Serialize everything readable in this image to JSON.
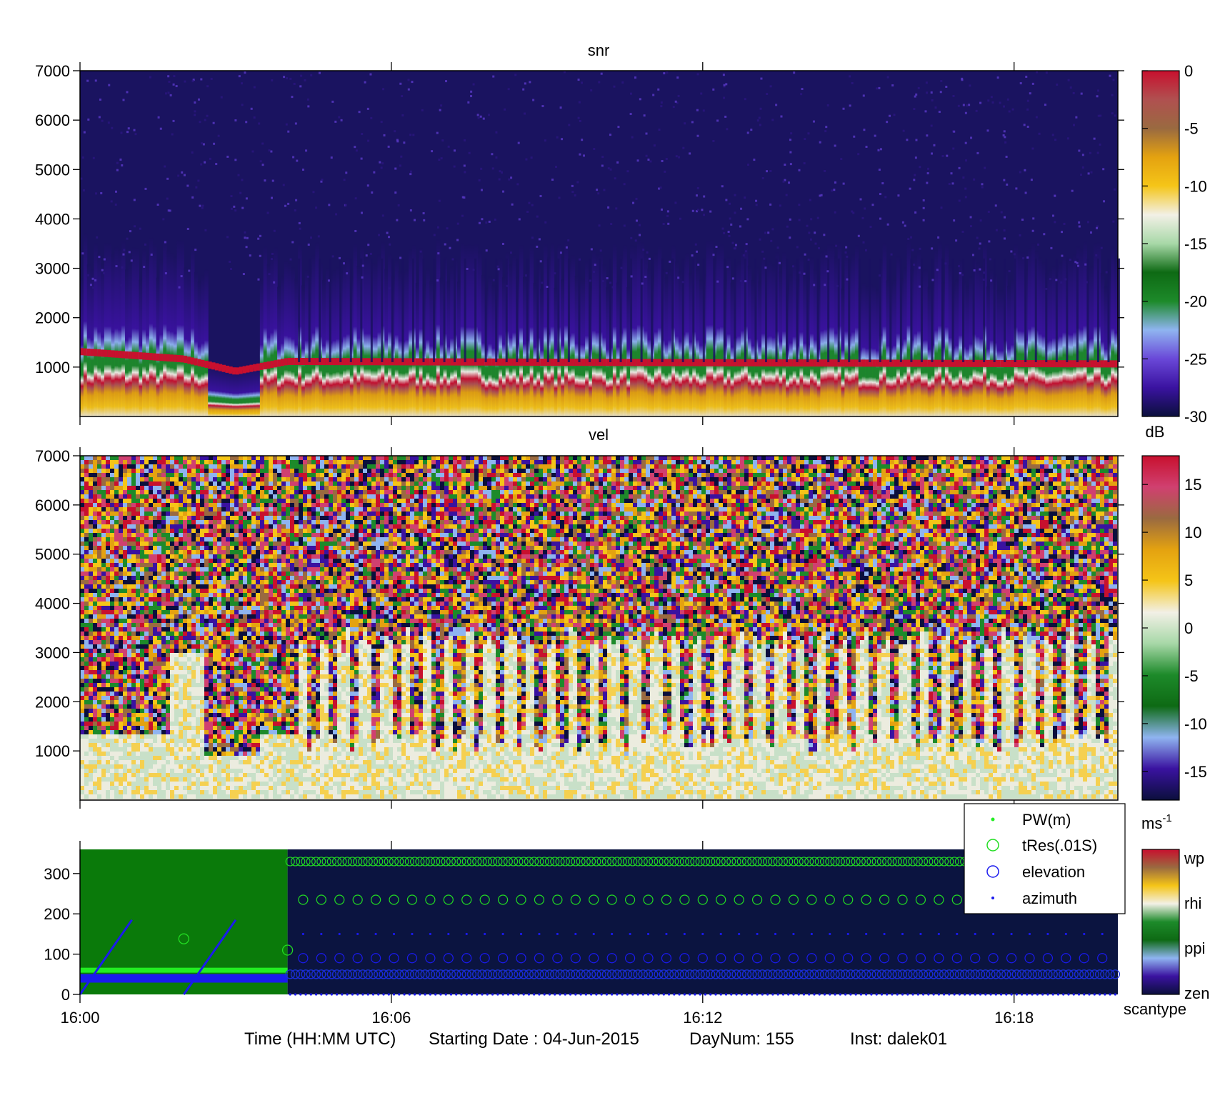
{
  "footer": {
    "time_label": "Time (HH:MM UTC)",
    "date_label": "Starting Date : 04-Jun-2015",
    "daynum_label": "DayNum: 155",
    "inst_label": "Inst: dalek01"
  },
  "colors": {
    "snr_colormap": [
      "#0b0f3c",
      "#3a12a0",
      "#6a48d8",
      "#8fb4f0",
      "#1d8a2a",
      "#0e6a14",
      "#a8d8a8",
      "#f2f0e6",
      "#f5c518",
      "#e4a210",
      "#9a6a40",
      "#b05050",
      "#c8102e"
    ],
    "vel_colormap": [
      "#0b0f3c",
      "#3a12a0",
      "#8fb4f0",
      "#0e6a14",
      "#1d8a2a",
      "#a8d8a8",
      "#f2f0e6",
      "#f5c518",
      "#e4a210",
      "#9a6a40",
      "#d04070",
      "#c8102e"
    ],
    "scantype_colormap": [
      "#0b0f3c",
      "#3a12a0",
      "#8fb4f0",
      "#0e6a14",
      "#1d8a2a",
      "#f2f0e6",
      "#f5c518",
      "#9a6a40",
      "#c8102e"
    ],
    "ppi_background": "#0a7a0a",
    "zen_background": "#0b1440",
    "pw_marker": "#22ee22",
    "tres_marker": "#22dd22",
    "elevation_marker": "#1a1aee",
    "azimuth_marker": "#1a1aee"
  },
  "chart_data": [
    {
      "type": "heatmap",
      "title": "snr",
      "x_range": [
        "16:00",
        "16:20"
      ],
      "x_ticks": [
        "16:00",
        "16:06",
        "16:12",
        "16:18"
      ],
      "ylim": [
        0,
        7000
      ],
      "y_ticks": [
        1000,
        2000,
        3000,
        4000,
        5000,
        6000,
        7000
      ],
      "colorbar": {
        "range": [
          -30,
          0
        ],
        "ticks": [
          0,
          -5,
          -10,
          -15,
          -20,
          -25,
          -30
        ],
        "units": "dB"
      },
      "approx_cloud_base_m": [
        {
          "t": "16:00",
          "h": 1300
        },
        {
          "t": "16:02",
          "h": 1150
        },
        {
          "t": "16:03",
          "h": 900
        },
        {
          "t": "16:04",
          "h": 1100
        },
        {
          "t": "16:20",
          "h": 1050
        }
      ]
    },
    {
      "type": "heatmap",
      "title": "vel",
      "x_range": [
        "16:00",
        "16:20"
      ],
      "x_ticks": [
        "16:00",
        "16:06",
        "16:12",
        "16:18"
      ],
      "ylim": [
        0,
        7000
      ],
      "y_ticks": [
        1000,
        2000,
        3000,
        4000,
        5000,
        6000,
        7000
      ],
      "colorbar": {
        "range": [
          -18,
          18
        ],
        "ticks": [
          15,
          10,
          5,
          0,
          -5,
          -10,
          -15
        ],
        "units": "ms",
        "units_exp": "-1"
      }
    },
    {
      "type": "scatter",
      "x_range": [
        "16:00",
        "16:20"
      ],
      "x_ticks": [
        "16:00",
        "16:06",
        "16:12",
        "16:18"
      ],
      "ylim": [
        0,
        360
      ],
      "y_ticks": [
        0,
        100,
        200,
        300
      ],
      "scantype_segments": [
        {
          "start": "16:00",
          "end": "16:04",
          "type": "ppi"
        },
        {
          "start": "16:04",
          "end": "16:20",
          "type": "zen"
        }
      ],
      "legend": {
        "placement": "top-right",
        "entries": [
          {
            "label": "PW(m)",
            "marker": "dot"
          },
          {
            "label": "tRes(.01S)",
            "marker": "circle"
          },
          {
            "label": "elevation",
            "marker": "circle"
          },
          {
            "label": "azimuth",
            "marker": "dot"
          }
        ]
      },
      "series": [
        {
          "name": "PW(m)",
          "approx_value": 60
        },
        {
          "name": "tRes(.01S)",
          "approx_values": [
            330,
            235,
            50
          ],
          "isolated_points": [
            {
              "t": "16:02",
              "v": 138
            },
            {
              "t": "16:04",
              "v": 110
            }
          ]
        },
        {
          "name": "elevation",
          "approx_values": [
            50,
            90
          ],
          "early_period_value": 40
        },
        {
          "name": "azimuth",
          "approx_values": [
            0,
            50,
            150
          ],
          "ramps": [
            {
              "t0": "16:00",
              "t1": "16:01",
              "v0": 0,
              "v1": 185
            },
            {
              "t0": "16:02",
              "t1": "16:03",
              "v0": 0,
              "v1": 185
            }
          ]
        }
      ],
      "colorbar": {
        "ticks": [
          "wp",
          "rhi",
          "ppi",
          "zen"
        ],
        "label": "scantype"
      }
    }
  ]
}
